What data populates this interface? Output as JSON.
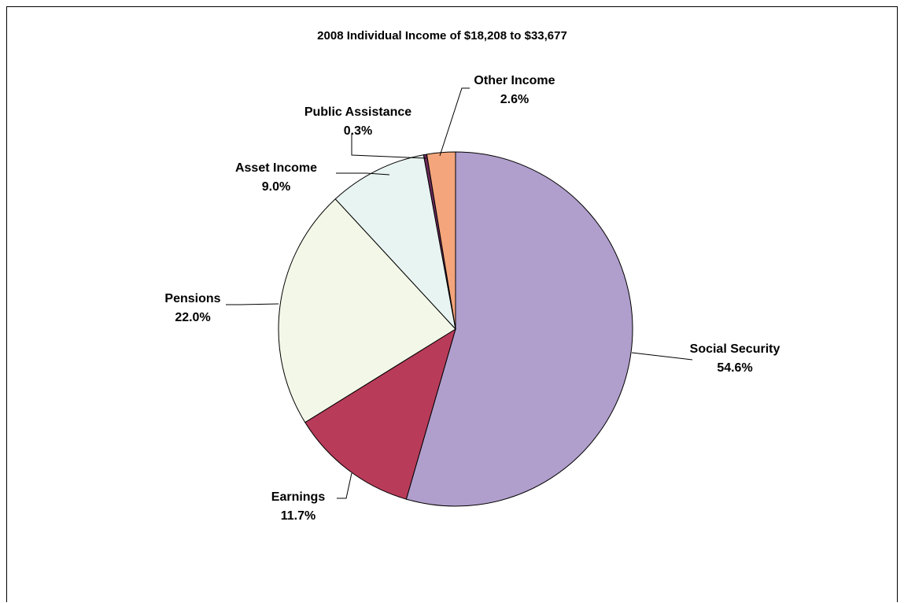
{
  "chart_data": {
    "type": "pie",
    "title": "2008 Individual Income of $18,208 to $33,677",
    "slices": [
      {
        "label": "Social Security",
        "value": 54.6,
        "value_label": "54.6%",
        "color": "#b09ecc"
      },
      {
        "label": "Earnings",
        "value": 11.7,
        "value_label": "11.7%",
        "color": "#b93b5a"
      },
      {
        "label": "Pensions",
        "value": 22.0,
        "value_label": "22.0%",
        "color": "#f3f7e8"
      },
      {
        "label": "Asset Income",
        "value": 9.0,
        "value_label": "9.0%",
        "color": "#e8f4f1"
      },
      {
        "label": "Public Assistance",
        "value": 0.3,
        "value_label": "0.3%",
        "color": "#6a2a5a"
      },
      {
        "label": "Other Income",
        "value": 2.6,
        "value_label": "2.6%",
        "color": "#f4a57c"
      }
    ],
    "start_angle": "12 o'clock",
    "direction": "clockwise",
    "legend": "none"
  }
}
